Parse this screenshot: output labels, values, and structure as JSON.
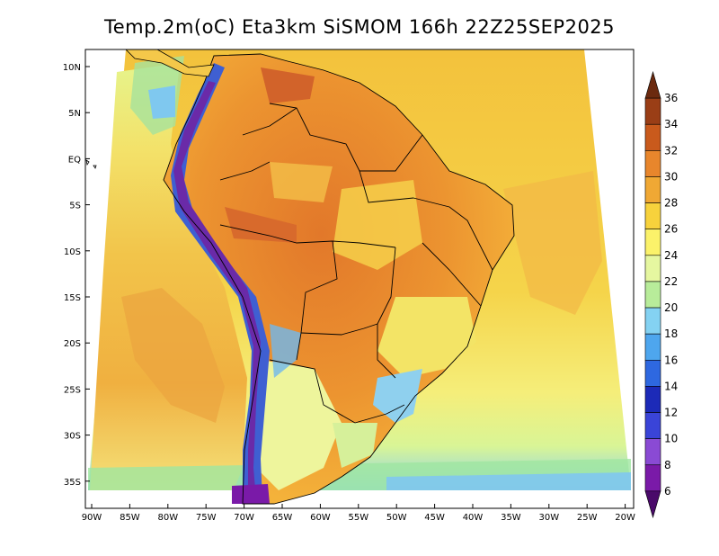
{
  "title": "Temp.2m(oC) Eta3km SiSMOM 166h 22Z25SEP2025",
  "map": {
    "lat_labels": [
      "10N",
      "5N",
      "EQ",
      "5S",
      "10S",
      "15S",
      "20S",
      "25S",
      "30S",
      "35S"
    ],
    "lon_labels": [
      "90W",
      "85W",
      "80W",
      "75W",
      "70W",
      "65W",
      "60W",
      "55W",
      "50W",
      "45W",
      "40W",
      "35W",
      "30W",
      "25W",
      "20W"
    ],
    "colors": {
      "ocean_warm": "#f2c43c",
      "ocean_mid": "#f7de53",
      "ocean_cool": "#f3f58c",
      "ocean_light": "#d8f58a",
      "land_hot": "#e8862c",
      "land_hotter": "#d9682a",
      "land_warm": "#f0a834",
      "andes_cold": "#6a2aa8",
      "andes_blue": "#3a5fd6",
      "coast_cool": "#6fc7f0",
      "border": "#000000"
    }
  },
  "colorbar": {
    "labels": [
      "36",
      "34",
      "32",
      "30",
      "28",
      "26",
      "24",
      "22",
      "20",
      "18",
      "16",
      "14",
      "12",
      "10",
      "8",
      "6"
    ],
    "colors": [
      "#6b2a0f",
      "#9a3e16",
      "#c95a1c",
      "#e8862c",
      "#f0a834",
      "#f7d23c",
      "#fbf26a",
      "#e6f7a0",
      "#b8ec9a",
      "#84d2f2",
      "#4ea6ee",
      "#2e68e0",
      "#1c2ab8",
      "#3a44d8",
      "#8a4ad4",
      "#7a1aa8",
      "#4a0a6a"
    ]
  }
}
